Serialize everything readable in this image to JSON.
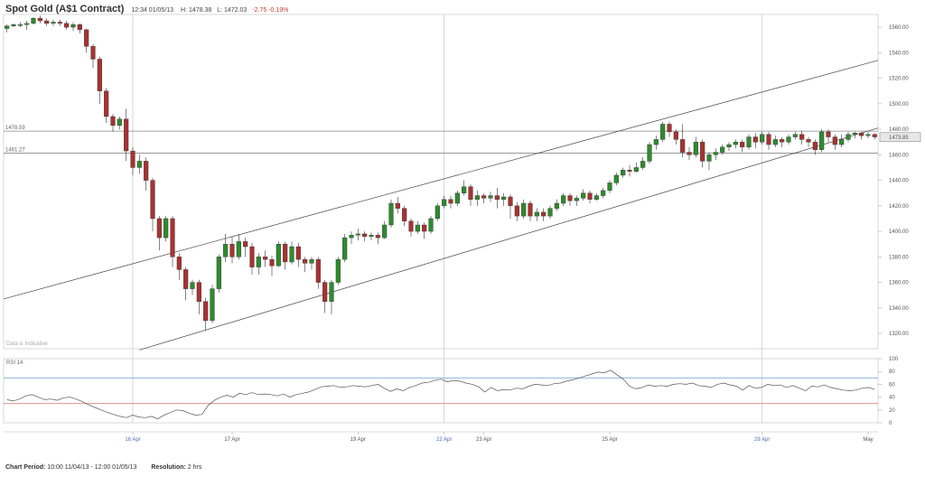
{
  "header": {
    "title": "Spot Gold (A$1 Contract)",
    "datetime": "12:34 01/05/13",
    "high": "H: 1478.38",
    "low": "L: 1472.03",
    "change": "-2.75 -0.19%"
  },
  "footer": {
    "period_label": "Chart Period:",
    "period_value": "10:00 11/04/13 - 12:00 01/05/13",
    "resolution_label": "Resolution:",
    "resolution_value": "2 hrs"
  },
  "colors": {
    "up": "#2e8b2e",
    "down": "#a83232",
    "grid": "#dddddd",
    "vline": "#c8cbe0",
    "rsi_line": "#555555",
    "rsi_upper": "#7fa8d8",
    "rsi_lower": "#d98080"
  },
  "chart_data": [
    {
      "type": "candlestick",
      "y_ticks": [
        "1560.00",
        "1540.00",
        "1520.00",
        "1500.00",
        "1480.00",
        "1460.00",
        "1440.00",
        "1420.00",
        "1400.00",
        "1380.00",
        "1360.00",
        "1340.00",
        "1320.00"
      ],
      "ylim": [
        1308,
        1570
      ],
      "x_ticks": [
        {
          "label": "16 Apr",
          "pos": 19,
          "color": "blue"
        },
        {
          "label": "17 Apr",
          "pos": 34,
          "color": "normal"
        },
        {
          "label": "19 Apr",
          "pos": 53,
          "color": "normal"
        },
        {
          "label": "22 Apr",
          "pos": 66,
          "color": "blue"
        },
        {
          "label": "23 Apr",
          "pos": 72,
          "color": "normal"
        },
        {
          "label": "25 Apr",
          "pos": 91,
          "color": "normal"
        },
        {
          "label": "29 Apr",
          "pos": 114,
          "color": "blue"
        },
        {
          "label": "May",
          "pos": 130,
          "color": "normal"
        }
      ],
      "levels": [
        {
          "value": 1478.59,
          "label": "1478.59"
        },
        {
          "value": 1461.27,
          "label": "1461.27"
        }
      ],
      "last_price": {
        "value": 1473.85,
        "label": "1473.85"
      },
      "annotation": "Data is Indicative",
      "candles": [
        [
          1559,
          1561,
          1556,
          1562
        ],
        [
          1561,
          1562,
          1560,
          1563
        ],
        [
          1562,
          1562,
          1560,
          1564
        ],
        [
          1562,
          1563,
          1558,
          1565
        ],
        [
          1563,
          1567,
          1562,
          1568
        ],
        [
          1567,
          1565,
          1563,
          1569
        ],
        [
          1565,
          1563,
          1561,
          1567
        ],
        [
          1563,
          1564,
          1561,
          1566
        ],
        [
          1564,
          1563,
          1561,
          1566
        ],
        [
          1563,
          1560,
          1558,
          1565
        ],
        [
          1560,
          1562,
          1557,
          1564
        ],
        [
          1562,
          1558,
          1555,
          1563
        ],
        [
          1558,
          1545,
          1540,
          1559
        ],
        [
          1545,
          1535,
          1528,
          1547
        ],
        [
          1535,
          1510,
          1500,
          1537
        ],
        [
          1510,
          1490,
          1485,
          1512
        ],
        [
          1490,
          1483,
          1478,
          1492
        ],
        [
          1483,
          1488,
          1480,
          1490
        ],
        [
          1488,
          1463,
          1455,
          1496
        ],
        [
          1463,
          1450,
          1444,
          1466
        ],
        [
          1450,
          1455,
          1445,
          1460
        ],
        [
          1455,
          1440,
          1432,
          1458
        ],
        [
          1440,
          1410,
          1400,
          1442
        ],
        [
          1410,
          1395,
          1385,
          1412
        ],
        [
          1395,
          1410,
          1392,
          1412
        ],
        [
          1410,
          1380,
          1372,
          1412
        ],
        [
          1380,
          1370,
          1362,
          1383
        ],
        [
          1370,
          1355,
          1346,
          1372
        ],
        [
          1355,
          1360,
          1350,
          1362
        ],
        [
          1360,
          1345,
          1335,
          1362
        ],
        [
          1345,
          1330,
          1322,
          1348
        ],
        [
          1330,
          1355,
          1328,
          1358
        ],
        [
          1355,
          1380,
          1352,
          1382
        ],
        [
          1380,
          1390,
          1376,
          1398
        ],
        [
          1390,
          1380,
          1375,
          1396
        ],
        [
          1380,
          1392,
          1378,
          1398
        ],
        [
          1392,
          1388,
          1380,
          1395
        ],
        [
          1388,
          1372,
          1366,
          1391
        ],
        [
          1372,
          1380,
          1366,
          1383
        ],
        [
          1380,
          1378,
          1372,
          1385
        ],
        [
          1378,
          1373,
          1365,
          1381
        ],
        [
          1373,
          1390,
          1372,
          1392
        ],
        [
          1390,
          1376,
          1370,
          1392
        ],
        [
          1376,
          1388,
          1374,
          1392
        ],
        [
          1388,
          1378,
          1372,
          1391
        ],
        [
          1378,
          1375,
          1368,
          1380
        ],
        [
          1375,
          1378,
          1370,
          1380
        ],
        [
          1378,
          1360,
          1355,
          1380
        ],
        [
          1360,
          1345,
          1336,
          1362
        ],
        [
          1345,
          1360,
          1335,
          1362
        ],
        [
          1360,
          1378,
          1358,
          1380
        ],
        [
          1378,
          1395,
          1376,
          1398
        ],
        [
          1395,
          1397,
          1390,
          1400
        ],
        [
          1397,
          1398,
          1393,
          1402
        ],
        [
          1398,
          1396,
          1392,
          1400
        ],
        [
          1396,
          1397,
          1393,
          1399
        ],
        [
          1397,
          1395,
          1390,
          1399
        ],
        [
          1395,
          1405,
          1394,
          1408
        ],
        [
          1405,
          1422,
          1403,
          1425
        ],
        [
          1422,
          1418,
          1414,
          1427
        ],
        [
          1418,
          1408,
          1404,
          1420
        ],
        [
          1408,
          1400,
          1396,
          1410
        ],
        [
          1400,
          1405,
          1398,
          1408
        ],
        [
          1405,
          1400,
          1394,
          1407
        ],
        [
          1400,
          1410,
          1398,
          1412
        ],
        [
          1410,
          1420,
          1408,
          1422
        ],
        [
          1420,
          1425,
          1418,
          1428
        ],
        [
          1425,
          1422,
          1418,
          1428
        ],
        [
          1422,
          1430,
          1420,
          1432
        ],
        [
          1430,
          1435,
          1428,
          1440
        ],
        [
          1435,
          1425,
          1420,
          1437
        ],
        [
          1425,
          1428,
          1420,
          1432
        ],
        [
          1428,
          1426,
          1422,
          1430
        ],
        [
          1426,
          1428,
          1423,
          1431
        ],
        [
          1428,
          1425,
          1418,
          1434
        ],
        [
          1425,
          1427,
          1420,
          1430
        ],
        [
          1427,
          1420,
          1410,
          1429
        ],
        [
          1420,
          1412,
          1408,
          1423
        ],
        [
          1412,
          1422,
          1410,
          1425
        ],
        [
          1422,
          1412,
          1408,
          1424
        ],
        [
          1412,
          1415,
          1408,
          1418
        ],
        [
          1415,
          1412,
          1408,
          1418
        ],
        [
          1412,
          1418,
          1410,
          1420
        ],
        [
          1418,
          1422,
          1416,
          1425
        ],
        [
          1422,
          1428,
          1420,
          1430
        ],
        [
          1428,
          1424,
          1420,
          1430
        ],
        [
          1424,
          1426,
          1420,
          1428
        ],
        [
          1426,
          1430,
          1424,
          1433
        ],
        [
          1430,
          1425,
          1422,
          1432
        ],
        [
          1425,
          1428,
          1424,
          1430
        ],
        [
          1428,
          1432,
          1426,
          1434
        ],
        [
          1432,
          1438,
          1430,
          1440
        ],
        [
          1438,
          1444,
          1436,
          1446
        ],
        [
          1444,
          1448,
          1442,
          1450
        ],
        [
          1448,
          1447,
          1443,
          1452
        ],
        [
          1447,
          1450,
          1446,
          1454
        ],
        [
          1450,
          1455,
          1448,
          1458
        ],
        [
          1455,
          1468,
          1453,
          1470
        ],
        [
          1468,
          1472,
          1464,
          1475
        ],
        [
          1472,
          1484,
          1470,
          1486
        ],
        [
          1484,
          1478,
          1474,
          1486
        ],
        [
          1478,
          1472,
          1468,
          1480
        ],
        [
          1472,
          1462,
          1458,
          1484
        ],
        [
          1462,
          1460,
          1456,
          1466
        ],
        [
          1460,
          1470,
          1458,
          1474
        ],
        [
          1470,
          1455,
          1450,
          1472
        ],
        [
          1455,
          1460,
          1448,
          1462
        ],
        [
          1460,
          1462,
          1456,
          1465
        ],
        [
          1462,
          1466,
          1460,
          1468
        ],
        [
          1466,
          1468,
          1463,
          1470
        ],
        [
          1468,
          1470,
          1465,
          1472
        ],
        [
          1470,
          1466,
          1462,
          1472
        ],
        [
          1466,
          1474,
          1464,
          1476
        ],
        [
          1474,
          1470,
          1465,
          1477
        ],
        [
          1470,
          1476,
          1468,
          1478
        ],
        [
          1476,
          1468,
          1464,
          1478
        ],
        [
          1468,
          1472,
          1466,
          1475
        ],
        [
          1472,
          1470,
          1466,
          1474
        ],
        [
          1470,
          1474,
          1468,
          1476
        ],
        [
          1474,
          1476,
          1472,
          1478
        ],
        [
          1476,
          1472,
          1468,
          1479
        ],
        [
          1472,
          1470,
          1466,
          1474
        ],
        [
          1470,
          1464,
          1460,
          1472
        ],
        [
          1464,
          1478,
          1462,
          1480
        ],
        [
          1478,
          1474,
          1470,
          1480
        ],
        [
          1474,
          1468,
          1464,
          1476
        ],
        [
          1468,
          1472,
          1466,
          1476
        ],
        [
          1472,
          1476,
          1470,
          1478
        ],
        [
          1476,
          1477,
          1473,
          1478
        ],
        [
          1477,
          1475,
          1472,
          1478
        ],
        [
          1475,
          1476,
          1473,
          1478
        ],
        [
          1476,
          1474,
          1472,
          1477
        ]
      ]
    },
    {
      "type": "line",
      "title": "RSI 14",
      "y_ticks": [
        "100",
        "80",
        "60",
        "40",
        "20",
        "0"
      ],
      "ylim": [
        0,
        100
      ],
      "levels": [
        70,
        30
      ],
      "values": [
        36,
        34,
        37,
        42,
        44,
        40,
        36,
        37,
        35,
        39,
        40,
        37,
        33,
        28,
        24,
        20,
        16,
        13,
        10,
        8,
        12,
        9,
        8,
        10,
        6,
        12,
        16,
        20,
        19,
        15,
        12,
        13,
        27,
        35,
        40,
        43,
        40,
        46,
        44,
        47,
        44,
        45,
        44,
        42,
        45,
        40,
        44,
        46,
        48,
        52,
        56,
        57,
        58,
        55,
        56,
        58,
        57,
        56,
        58,
        60,
        54,
        49,
        53,
        50,
        55,
        58,
        62,
        63,
        66,
        68,
        64,
        66,
        65,
        62,
        60,
        56,
        48,
        55,
        50,
        52,
        51,
        54,
        53,
        57,
        60,
        59,
        58,
        61,
        62,
        65,
        67,
        70,
        73,
        76,
        79,
        78,
        82,
        75,
        68,
        57,
        53,
        55,
        59,
        57,
        58,
        57,
        60,
        61,
        60,
        62,
        58,
        57,
        55,
        60,
        62,
        59,
        57,
        51,
        58,
        54,
        55,
        60,
        58,
        59,
        55,
        58,
        54,
        50,
        57,
        56,
        59,
        55,
        53,
        51,
        50,
        51,
        54,
        55,
        52
      ]
    }
  ]
}
